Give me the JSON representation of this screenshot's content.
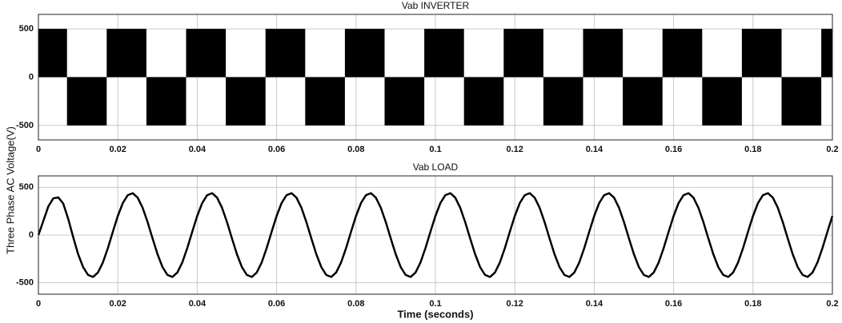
{
  "ylabel": "Three Phase AC Voltage(V)",
  "chart_data": [
    {
      "type": "histogram",
      "title": "Vab  INVERTER",
      "color": "#000000",
      "grid": true,
      "bins": [
        0,
        0.0072,
        0.0172,
        0.0272,
        0.0372,
        0.0472,
        0.0572,
        0.0672,
        0.0772,
        0.0872,
        0.0972,
        0.1072,
        0.1172,
        0.1272,
        0.1372,
        0.1472,
        0.1572,
        0.1672,
        0.1772,
        0.1872,
        0.1972,
        0.2
      ],
      "values": [
        500,
        -500,
        500,
        -500,
        500,
        -500,
        500,
        -500,
        500,
        -500,
        500,
        -500,
        500,
        -500,
        500,
        -500,
        500,
        -500,
        500,
        -500,
        500
      ],
      "xlim": [
        0,
        0.2
      ],
      "xticks": [
        0,
        0.02,
        0.04,
        0.06,
        0.08,
        0.1,
        0.12,
        0.14,
        0.16,
        0.18,
        0.2
      ],
      "ylim": [
        -650,
        650
      ],
      "yticks": [
        -500,
        0,
        500
      ]
    },
    {
      "type": "line",
      "title": "Vab LOAD",
      "xlabel": "Time (seconds)",
      "color": "#000000",
      "grid": true,
      "x": [
        0,
        0.00125,
        0.0025,
        0.00375,
        0.005,
        0.00625,
        0.0075,
        0.00875,
        0.01,
        0.01125,
        0.0125,
        0.01375,
        0.015,
        0.01625,
        0.0175,
        0.01875,
        0.02,
        0.02125,
        0.0225,
        0.02375,
        0.025,
        0.02625,
        0.0275,
        0.02875,
        0.03,
        0.03125,
        0.0325,
        0.03375,
        0.035,
        0.03625,
        0.0375,
        0.03875,
        0.04,
        0.04125,
        0.0425,
        0.04375,
        0.045,
        0.04625,
        0.0475,
        0.04875,
        0.05,
        0.05125,
        0.0525,
        0.05375,
        0.055,
        0.05625,
        0.0575,
        0.05875,
        0.06,
        0.06125,
        0.0625,
        0.06375,
        0.065,
        0.06625,
        0.0675,
        0.06875,
        0.07,
        0.07125,
        0.0725,
        0.07375,
        0.075,
        0.07625,
        0.0775,
        0.07875,
        0.08,
        0.08125,
        0.0825,
        0.08375,
        0.085,
        0.08625,
        0.0875,
        0.08875,
        0.09,
        0.09125,
        0.0925,
        0.09375,
        0.095,
        0.09625,
        0.0975,
        0.09875,
        0.1,
        0.10125,
        0.1025,
        0.10375,
        0.105,
        0.10625,
        0.1075,
        0.10875,
        0.11,
        0.11125,
        0.1125,
        0.11375,
        0.115,
        0.11625,
        0.1175,
        0.11875,
        0.12,
        0.12125,
        0.1225,
        0.12375,
        0.125,
        0.12625,
        0.1275,
        0.12875,
        0.13,
        0.13125,
        0.1325,
        0.13375,
        0.135,
        0.13625,
        0.1375,
        0.13875,
        0.14,
        0.14125,
        0.1425,
        0.14375,
        0.145,
        0.14625,
        0.1475,
        0.14875,
        0.15,
        0.15125,
        0.1525,
        0.15375,
        0.155,
        0.15625,
        0.1575,
        0.15875,
        0.16,
        0.16125,
        0.1625,
        0.16375,
        0.165,
        0.16625,
        0.1675,
        0.16875,
        0.17,
        0.17125,
        0.1725,
        0.17375,
        0.175,
        0.17625,
        0.1775,
        0.17875,
        0.18,
        0.18125,
        0.1825,
        0.18375,
        0.185,
        0.18625,
        0.1875,
        0.18875,
        0.19,
        0.19125,
        0.1925,
        0.19375,
        0.195,
        0.19625,
        0.1975,
        0.19875,
        0.2
      ],
      "values": [
        0,
        150,
        300,
        385,
        395,
        330,
        170,
        -20,
        -200,
        -335,
        -418,
        -439,
        -392,
        -286,
        -136,
        35,
        200,
        335,
        418,
        439,
        392,
        286,
        136,
        -35,
        -200,
        -335,
        -418,
        -439,
        -392,
        -286,
        -136,
        35,
        200,
        335,
        418,
        439,
        392,
        286,
        136,
        -35,
        -200,
        -335,
        -418,
        -439,
        -392,
        -286,
        -136,
        35,
        200,
        335,
        418,
        439,
        392,
        286,
        136,
        -35,
        -200,
        -335,
        -418,
        -439,
        -392,
        -286,
        -136,
        35,
        200,
        335,
        418,
        439,
        392,
        286,
        136,
        -35,
        -200,
        -335,
        -418,
        -439,
        -392,
        -286,
        -136,
        35,
        200,
        335,
        418,
        439,
        392,
        286,
        136,
        -35,
        -200,
        -335,
        -418,
        -439,
        -392,
        -286,
        -136,
        35,
        200,
        335,
        418,
        439,
        392,
        286,
        136,
        -35,
        -200,
        -335,
        -418,
        -439,
        -392,
        -286,
        -136,
        35,
        200,
        335,
        418,
        439,
        392,
        286,
        136,
        -35,
        -200,
        -335,
        -418,
        -439,
        -392,
        -286,
        -136,
        35,
        200,
        335,
        418,
        439,
        392,
        286,
        136,
        -35,
        -200,
        -335,
        -418,
        -439,
        -392,
        -286,
        -136,
        35,
        200,
        335,
        418,
        439,
        392,
        286,
        136,
        -35,
        -200,
        -335,
        -418,
        -439,
        -392,
        -286,
        -136,
        35,
        200
      ],
      "xlim": [
        0,
        0.2
      ],
      "xticks": [
        0,
        0.02,
        0.04,
        0.06,
        0.08,
        0.1,
        0.12,
        0.14,
        0.16,
        0.18,
        0.2
      ],
      "ylim": [
        -620,
        620
      ],
      "yticks": [
        -500,
        0,
        500
      ]
    }
  ]
}
